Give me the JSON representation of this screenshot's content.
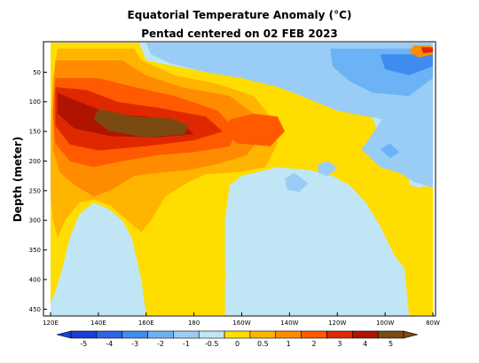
{
  "chart_data": {
    "type": "heatmap",
    "title": "Equatorial Temperature Anomaly (°C)",
    "subtitle": "Pentad centered on 02 FEB 2023",
    "ylabel": "Depth (meter)",
    "xlabel": "",
    "x_ticks": [
      "120E",
      "140E",
      "160E",
      "180",
      "160W",
      "140W",
      "120W",
      "100W",
      "80W"
    ],
    "y_ticks": [
      "50",
      "100",
      "150",
      "200",
      "250",
      "300",
      "350",
      "400",
      "450"
    ],
    "xlim": [
      120,
      280
    ],
    "ylim": [
      0,
      460
    ],
    "colorbar": {
      "labels": [
        "-5",
        "-4",
        "-3",
        "-2",
        "-1",
        "-0.5",
        "0",
        "0.5",
        "1",
        "2",
        "3",
        "4",
        "5"
      ],
      "colors": [
        "#1a3fd6",
        "#2a65e8",
        "#3f8cf0",
        "#6cb3f5",
        "#99cdf5",
        "#c0e6f5",
        "#ffdd00",
        "#ffb400",
        "#ff8c00",
        "#ff5a00",
        "#e02800",
        "#b01400",
        "#7a4a10"
      ]
    },
    "regions": [
      {
        "level": "-0.5",
        "points": [
          [
            120,
            0
          ],
          [
            280,
            0
          ],
          [
            280,
            460
          ],
          [
            120,
            460
          ]
        ]
      },
      {
        "level": "0",
        "points": [
          [
            120,
            0
          ],
          [
            157,
            0
          ],
          [
            160,
            30
          ],
          [
            185,
            50
          ],
          [
            215,
            60
          ],
          [
            235,
            70
          ],
          [
            250,
            78
          ],
          [
            252,
            100
          ],
          [
            255,
            130
          ],
          [
            258,
            160
          ],
          [
            262,
            185
          ],
          [
            265,
            195
          ],
          [
            272,
            200
          ],
          [
            280,
            200
          ],
          [
            280,
            460
          ],
          [
            270,
            460
          ],
          [
            269,
            420
          ],
          [
            268,
            380
          ],
          [
            264,
            360
          ],
          [
            258,
            310
          ],
          [
            252,
            270
          ],
          [
            245,
            240
          ],
          [
            238,
            225
          ],
          [
            228,
            215
          ],
          [
            215,
            210
          ],
          [
            200,
            225
          ],
          [
            195,
            240
          ],
          [
            193,
            300
          ],
          [
            193,
            380
          ],
          [
            195,
            460
          ],
          [
            160,
            460
          ],
          [
            158,
            400
          ],
          [
            154,
            330
          ],
          [
            150,
            300
          ],
          [
            144,
            280
          ],
          [
            138,
            270
          ],
          [
            132,
            290
          ],
          [
            128,
            330
          ],
          [
            125,
            380
          ],
          [
            122,
            420
          ],
          [
            120,
            440
          ]
        ]
      },
      {
        "level": "-0.5",
        "points": [
          [
            193,
            460
          ],
          [
            193,
            400
          ],
          [
            196,
            380
          ],
          [
            198,
            400
          ],
          [
            197,
            460
          ]
        ]
      },
      {
        "level": "-0.5",
        "points": [
          [
            270,
            200
          ],
          [
            276,
            195
          ],
          [
            280,
            190
          ],
          [
            280,
            240
          ],
          [
            274,
            245
          ],
          [
            270,
            240
          ]
        ]
      },
      {
        "level": "-1",
        "points": [
          [
            160,
            0
          ],
          [
            280,
            0
          ],
          [
            280,
            110
          ],
          [
            275,
            120
          ],
          [
            260,
            130
          ],
          [
            240,
            115
          ],
          [
            225,
            90
          ],
          [
            215,
            75
          ],
          [
            200,
            60
          ],
          [
            185,
            50
          ],
          [
            170,
            35
          ],
          [
            162,
            20
          ]
        ]
      },
      {
        "level": "-1",
        "points": [
          [
            218,
            230
          ],
          [
            222,
            220
          ],
          [
            228,
            238
          ],
          [
            224,
            252
          ],
          [
            219,
            248
          ]
        ]
      },
      {
        "level": "-1",
        "points": [
          [
            232,
            205
          ],
          [
            236,
            200
          ],
          [
            240,
            212
          ],
          [
            236,
            225
          ],
          [
            232,
            220
          ]
        ]
      },
      {
        "level": "-1",
        "points": [
          [
            280,
            90
          ],
          [
            262,
            110
          ],
          [
            252,
            170
          ],
          [
            250,
            180
          ],
          [
            258,
            210
          ],
          [
            266,
            220
          ],
          [
            272,
            235
          ],
          [
            280,
            245
          ]
        ]
      },
      {
        "level": "-2",
        "points": [
          [
            237,
            10
          ],
          [
            280,
            10
          ],
          [
            280,
            60
          ],
          [
            270,
            90
          ],
          [
            255,
            85
          ],
          [
            245,
            65
          ],
          [
            238,
            40
          ]
        ]
      },
      {
        "level": "-2",
        "points": [
          [
            258,
            180
          ],
          [
            262,
            170
          ],
          [
            266,
            185
          ],
          [
            262,
            195
          ]
        ]
      },
      {
        "level": "-3",
        "points": [
          [
            258,
            20
          ],
          [
            280,
            20
          ],
          [
            280,
            40
          ],
          [
            270,
            55
          ],
          [
            260,
            45
          ]
        ]
      },
      {
        "level": "0.5",
        "points": [
          [
            123,
            10
          ],
          [
            155,
            10
          ],
          [
            158,
            30
          ],
          [
            172,
            55
          ],
          [
            190,
            70
          ],
          [
            205,
            90
          ],
          [
            212,
            125
          ],
          [
            215,
            170
          ],
          [
            210,
            210
          ],
          [
            200,
            218
          ],
          [
            195,
            220
          ],
          [
            185,
            222
          ],
          [
            178,
            235
          ],
          [
            168,
            260
          ],
          [
            162,
            300
          ],
          [
            158,
            320
          ],
          [
            152,
            300
          ],
          [
            145,
            275
          ],
          [
            138,
            265
          ],
          [
            132,
            270
          ],
          [
            126,
            300
          ],
          [
            123,
            330
          ],
          [
            121,
            300
          ],
          [
            120,
            260
          ],
          [
            120,
            150
          ],
          [
            121,
            60
          ]
        ]
      },
      {
        "level": "1",
        "points": [
          [
            122,
            30
          ],
          [
            150,
            30
          ],
          [
            160,
            55
          ],
          [
            175,
            75
          ],
          [
            195,
            90
          ],
          [
            205,
            120
          ],
          [
            208,
            160
          ],
          [
            202,
            190
          ],
          [
            190,
            205
          ],
          [
            178,
            215
          ],
          [
            165,
            220
          ],
          [
            155,
            225
          ],
          [
            145,
            250
          ],
          [
            138,
            260
          ],
          [
            130,
            240
          ],
          [
            124,
            220
          ],
          [
            121,
            180
          ],
          [
            121,
            90
          ]
        ]
      },
      {
        "level": "2",
        "points": [
          [
            122,
            60
          ],
          [
            140,
            60
          ],
          [
            155,
            75
          ],
          [
            172,
            90
          ],
          [
            190,
            115
          ],
          [
            198,
            150
          ],
          [
            195,
            175
          ],
          [
            180,
            185
          ],
          [
            165,
            190
          ],
          [
            150,
            200
          ],
          [
            138,
            210
          ],
          [
            128,
            200
          ],
          [
            122,
            170
          ],
          [
            121,
            120
          ]
        ]
      },
      {
        "level": "3",
        "points": [
          [
            122,
            75
          ],
          [
            135,
            80
          ],
          [
            148,
            100
          ],
          [
            165,
            110
          ],
          [
            185,
            125
          ],
          [
            192,
            150
          ],
          [
            180,
            165
          ],
          [
            160,
            175
          ],
          [
            140,
            182
          ],
          [
            128,
            172
          ],
          [
            122,
            140
          ]
        ]
      },
      {
        "level": "4",
        "points": [
          [
            123,
            85
          ],
          [
            132,
            100
          ],
          [
            145,
            120
          ],
          [
            160,
            125
          ],
          [
            175,
            135
          ],
          [
            180,
            155
          ],
          [
            165,
            160
          ],
          [
            145,
            158
          ],
          [
            130,
            145
          ],
          [
            123,
            120
          ]
        ]
      },
      {
        "level": "5",
        "points": [
          [
            140,
            112
          ],
          [
            155,
            125
          ],
          [
            170,
            128
          ],
          [
            178,
            140
          ],
          [
            176,
            155
          ],
          [
            160,
            160
          ],
          [
            145,
            150
          ],
          [
            138,
            130
          ]
        ]
      },
      {
        "level": "2",
        "points": [
          [
            195,
            130
          ],
          [
            205,
            120
          ],
          [
            215,
            125
          ],
          [
            218,
            150
          ],
          [
            212,
            175
          ],
          [
            198,
            170
          ],
          [
            193,
            150
          ]
        ]
      },
      {
        "level": "1",
        "points": [
          [
            272,
            5
          ],
          [
            279,
            5
          ],
          [
            280,
            20
          ],
          [
            274,
            25
          ],
          [
            270,
            15
          ]
        ]
      },
      {
        "level": "3",
        "points": [
          [
            275,
            8
          ],
          [
            280,
            8
          ],
          [
            280,
            16
          ],
          [
            276,
            18
          ]
        ]
      }
    ]
  }
}
